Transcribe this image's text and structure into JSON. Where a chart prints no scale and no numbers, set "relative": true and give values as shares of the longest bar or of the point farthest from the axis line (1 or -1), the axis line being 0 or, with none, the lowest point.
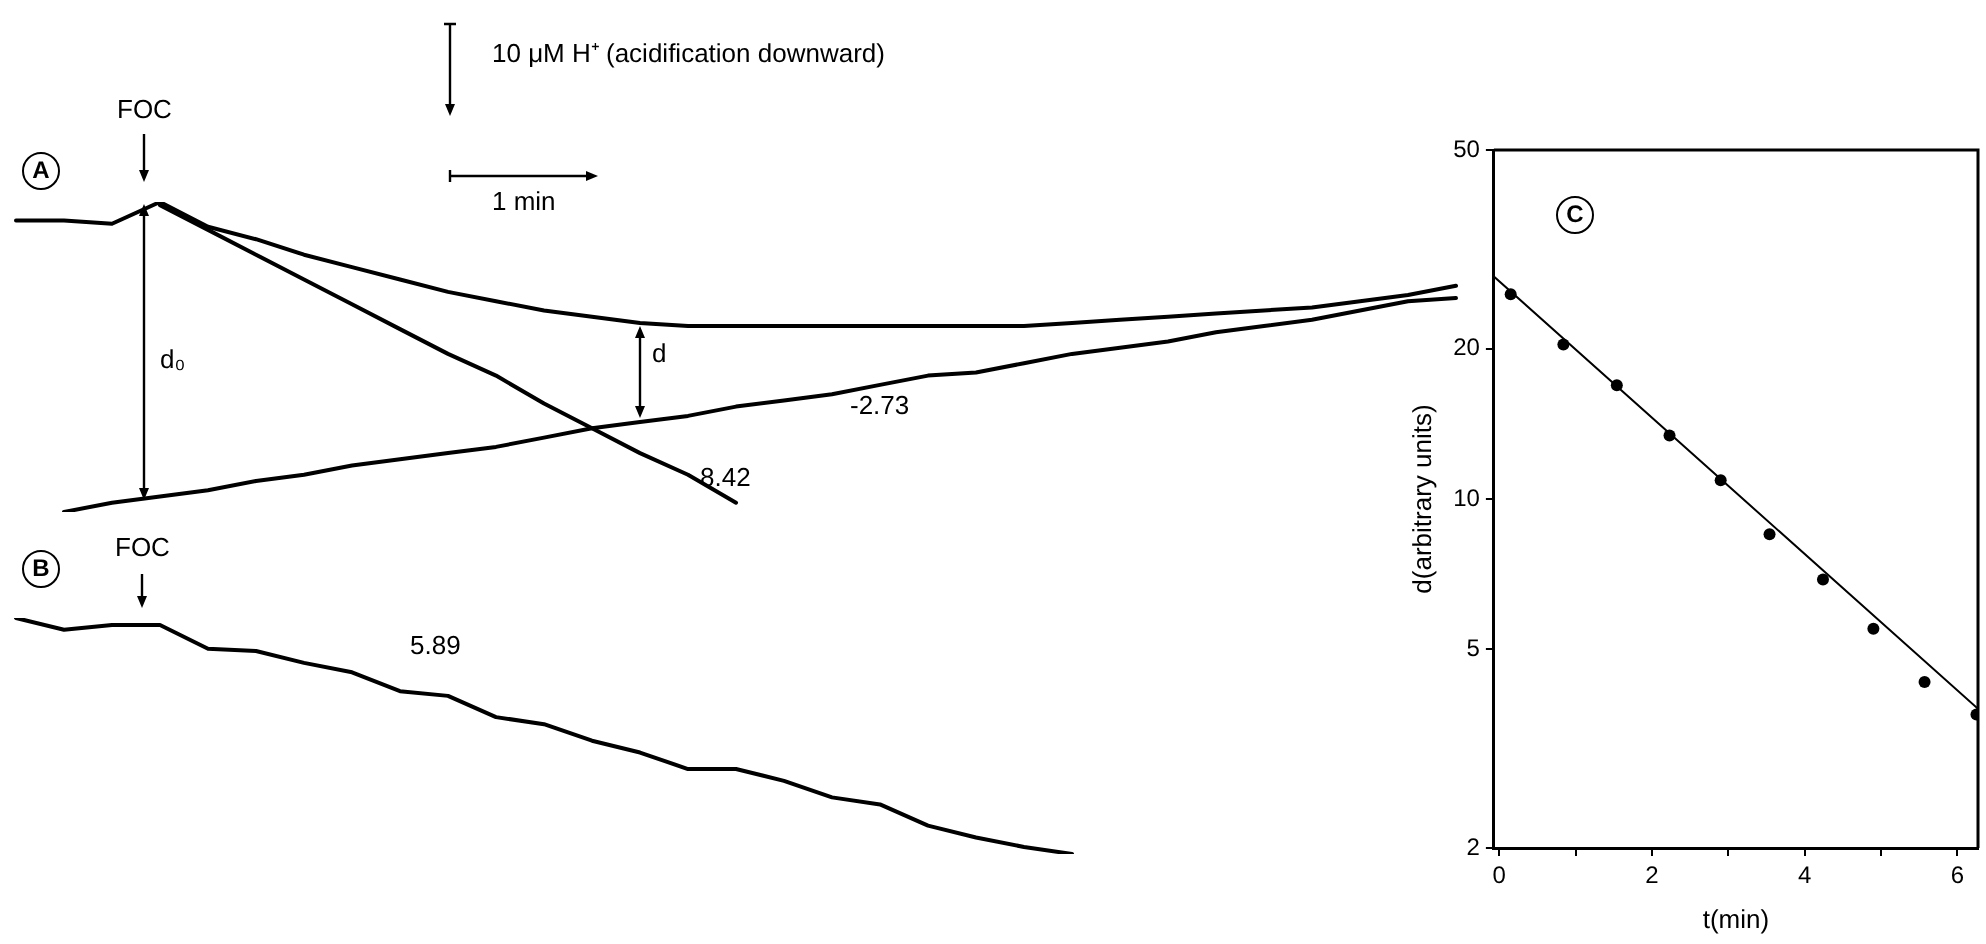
{
  "chart_data": [
    {
      "type": "line",
      "title": "A",
      "relative": true,
      "marker": "none",
      "categories": [
        null,
        null,
        null,
        null,
        null,
        null,
        null,
        null,
        null,
        null,
        null,
        null,
        null,
        null,
        null,
        null,
        null,
        null,
        null,
        null,
        null,
        null,
        null,
        null,
        null,
        null,
        null,
        null,
        null,
        null,
        null
      ],
      "series": [
        {
          "color": "#000000",
          "values": [
            0.94,
            0.94,
            0.93,
            1,
            0.92,
            0.88,
            0.83,
            0.79,
            0.75,
            0.71,
            0.68,
            0.65,
            0.63,
            0.61,
            0.6,
            0.6,
            0.6,
            0.6,
            0.6,
            0.6,
            0.6,
            0.6,
            0.61,
            0.62,
            0.63,
            0.64,
            0.65,
            0.66,
            0.68,
            0.7,
            0.73
          ]
        },
        {
          "color": "#000000",
          "values": [
            null,
            null,
            null,
            0.99,
            0.91,
            0.83,
            0.75,
            0.67,
            0.59,
            0.51,
            0.44,
            0.35,
            0.27,
            0.19,
            0.12,
            0.03,
            null,
            null,
            null,
            null,
            null,
            null,
            null,
            null,
            null,
            null,
            null,
            null,
            null,
            null,
            null
          ]
        },
        {
          "color": "#000000",
          "values": [
            null,
            0,
            0.03,
            0.05,
            0.07,
            0.1,
            0.12,
            0.15,
            0.17,
            0.19,
            0.21,
            0.24,
            0.27,
            0.29,
            0.31,
            0.34,
            0.36,
            0.38,
            0.41,
            0.44,
            0.45,
            0.48,
            0.51,
            0.53,
            0.55,
            0.58,
            0.6,
            0.62,
            0.65,
            0.68,
            0.69
          ]
        }
      ],
      "annotations": [
        "FOC",
        "10 μM H⁺ (acidification downward)",
        "1 min",
        "d₀",
        "d",
        "8.42",
        "-2.73"
      ]
    },
    {
      "type": "line",
      "title": "B",
      "relative": true,
      "marker": "none",
      "categories": [
        null,
        null,
        null,
        null,
        null,
        null,
        null,
        null,
        null,
        null,
        null,
        null,
        null,
        null,
        null,
        null,
        null,
        null,
        null,
        null,
        null,
        null,
        null
      ],
      "series": [
        {
          "color": "#000000",
          "values": [
            1,
            0.95,
            0.97,
            0.97,
            0.87,
            0.86,
            0.81,
            0.77,
            0.69,
            0.67,
            0.58,
            0.55,
            0.48,
            0.43,
            0.36,
            0.36,
            0.31,
            0.24,
            0.21,
            0.12,
            0.07,
            0.03,
            0
          ]
        }
      ],
      "annotations": [
        "FOC",
        "5.89"
      ]
    },
    {
      "type": "scatter",
      "title": "C",
      "xlabel": "t(min)",
      "ylabel": "d(arbitrary units)",
      "log": "y",
      "xlim": [
        -0.07,
        6.27
      ],
      "ylim": [
        2,
        50
      ],
      "xticks": [
        0,
        {
          "value": 1,
          "label": null
        },
        2,
        {
          "value": 3,
          "label": null
        },
        4,
        {
          "value": 5,
          "label": null
        },
        6
      ],
      "yticks": [
        2,
        5,
        10,
        20,
        50
      ],
      "series": [
        {
          "color": "#000000",
          "marker": "circle",
          "x": [
            0.15,
            0.84,
            1.54,
            2.23,
            2.9,
            3.54,
            4.24,
            4.9,
            5.57,
            6.25
          ],
          "values": [
            25.7,
            20.4,
            16.9,
            13.4,
            10.9,
            8.5,
            6.9,
            5.5,
            4.3,
            3.7
          ]
        },
        {
          "type": "line",
          "color": "#000000",
          "marker": "none",
          "x": [
            -0.07,
            6.27
          ],
          "values": [
            27.9,
            3.8
          ]
        }
      ]
    }
  ]
}
